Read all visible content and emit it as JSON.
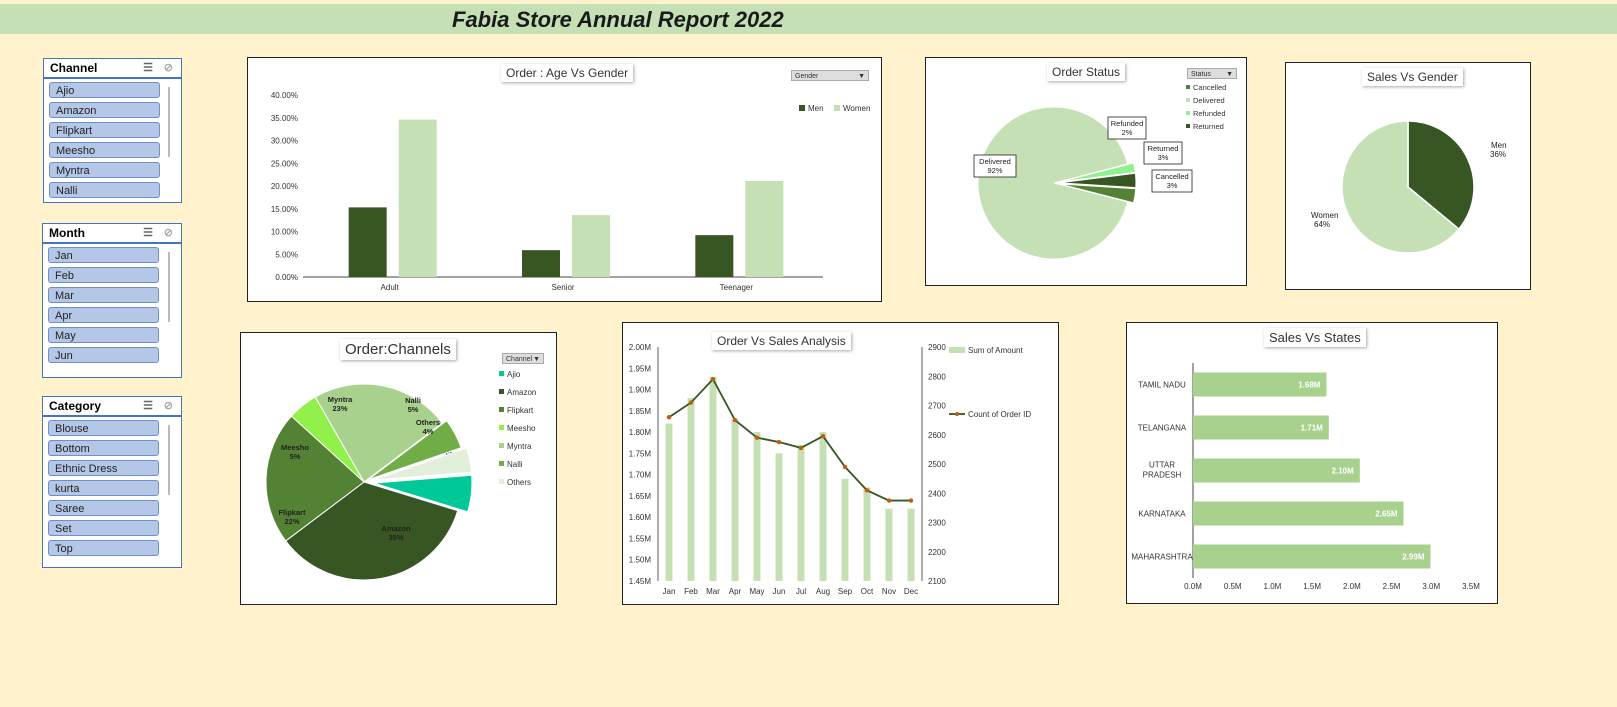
{
  "report_title": "Fabia Store Annual Report 2022",
  "colors": {
    "dark_green": "#375623",
    "mid_green": "#548235",
    "light_green": "#c5e0b4",
    "bright_green": "#92d050",
    "teal": "#00c896",
    "background": "#fff2cc",
    "slicer_item": "#b4c7e7"
  },
  "slicers": {
    "channel": {
      "label": "Channel",
      "items": [
        "Ajio",
        "Amazon",
        "Flipkart",
        "Meesho",
        "Myntra",
        "Nalli"
      ]
    },
    "month": {
      "label": "Month",
      "items": [
        "Jan",
        "Feb",
        "Mar",
        "Apr",
        "May",
        "Jun"
      ]
    },
    "category": {
      "label": "Category",
      "items": [
        "Blouse",
        "Bottom",
        "Ethnic Dress",
        "kurta",
        "Saree",
        "Set",
        "Top"
      ]
    }
  },
  "icons": {
    "multi_select": "multi-select-icon",
    "clear_filter": "clear-filter-icon"
  },
  "chart_data": [
    {
      "id": "age_gender",
      "type": "bar",
      "title": "Order : Age Vs Gender",
      "filter": "Gender",
      "categories": [
        "Adult",
        "Senior",
        "Teenager"
      ],
      "series": [
        {
          "name": "Men",
          "values": [
            15.3,
            5.9,
            9.2
          ],
          "color": "#375623"
        },
        {
          "name": "Women",
          "values": [
            34.6,
            13.6,
            21.1
          ],
          "color": "#c5e0b4"
        }
      ],
      "yticks": [
        "0.00%",
        "5.00%",
        "10.00%",
        "15.00%",
        "20.00%",
        "25.00%",
        "30.00%",
        "35.00%",
        "40.00%"
      ],
      "ylim": [
        0,
        40
      ],
      "legend": "top-right"
    },
    {
      "id": "order_status",
      "type": "pie",
      "title": "Order Status",
      "filter": "Status",
      "slices": [
        {
          "name": "Cancelled",
          "value": 3,
          "label": "Cancelled",
          "pct": "3%",
          "color": "#548235"
        },
        {
          "name": "Delivered",
          "value": 92,
          "label": "Delivered",
          "pct": "92%",
          "color": "#c5e0b4"
        },
        {
          "name": "Refunded",
          "value": 2,
          "label": "Refunded",
          "pct": "2%",
          "color": "#92f092"
        },
        {
          "name": "Returned",
          "value": 3,
          "label": "Returned",
          "pct": "3%",
          "color": "#375623"
        }
      ],
      "legend": "top-right"
    },
    {
      "id": "sales_gender",
      "type": "pie",
      "title": "Sales Vs Gender",
      "slices": [
        {
          "name": "Men",
          "value": 36,
          "label": "Men",
          "pct": "36%",
          "color": "#375623"
        },
        {
          "name": "Women",
          "value": 64,
          "label": "Women",
          "pct": "64%",
          "color": "#c5e0b4"
        }
      ]
    },
    {
      "id": "order_channels",
      "type": "pie",
      "title": "Order:Channels",
      "filter": "Channel",
      "slices": [
        {
          "name": "Ajio",
          "value": 6,
          "label": "Ajio",
          "pct": "6%",
          "color": "#00c896"
        },
        {
          "name": "Amazon",
          "value": 35,
          "label": "Amazon",
          "pct": "35%",
          "color": "#375623"
        },
        {
          "name": "Flipkart",
          "value": 22,
          "label": "Flipkart",
          "pct": "22%",
          "color": "#548235"
        },
        {
          "name": "Meesho",
          "value": 5,
          "label": "Meesho",
          "pct": "5%",
          "color": "#92f04a"
        },
        {
          "name": "Myntra",
          "value": 23,
          "label": "Myntra",
          "pct": "23%",
          "color": "#a9d18e"
        },
        {
          "name": "Nalli",
          "value": 5,
          "label": "Nalli",
          "pct": "5%",
          "color": "#70ad47"
        },
        {
          "name": "Others",
          "value": 4,
          "label": "Others",
          "pct": "4%",
          "color": "#e2efda"
        }
      ],
      "legend": "right"
    },
    {
      "id": "order_sales",
      "type": "bar+line",
      "title": "Order Vs Sales Analysis",
      "categories": [
        "Jan",
        "Feb",
        "Mar",
        "Apr",
        "May",
        "Jun",
        "Jul",
        "Aug",
        "Sep",
        "Oct",
        "Nov",
        "Dec"
      ],
      "series": [
        {
          "name": "Sum of Amount",
          "type": "bar",
          "axis": "left",
          "values": [
            1.82,
            1.88,
            1.93,
            1.83,
            1.8,
            1.75,
            1.77,
            1.8,
            1.69,
            1.67,
            1.62,
            1.62
          ],
          "color": "#c5e0b4"
        },
        {
          "name": "Count of Order ID",
          "type": "line",
          "axis": "right",
          "values": [
            2660,
            2710,
            2790,
            2650,
            2590,
            2575,
            2555,
            2595,
            2490,
            2410,
            2375,
            2375
          ],
          "color": "#375623",
          "marker_color": "#c55a11"
        }
      ],
      "yticks_left": [
        "1.45M",
        "1.50M",
        "1.55M",
        "1.60M",
        "1.65M",
        "1.70M",
        "1.75M",
        "1.80M",
        "1.85M",
        "1.90M",
        "1.95M",
        "2.00M"
      ],
      "ylim_left": [
        1.45,
        2.0
      ],
      "yticks_right": [
        "2100",
        "2200",
        "2300",
        "2400",
        "2500",
        "2600",
        "2700",
        "2800",
        "2900"
      ],
      "ylim_right": [
        2100,
        2900
      ]
    },
    {
      "id": "sales_states",
      "type": "bar",
      "orientation": "horizontal",
      "title": "Sales Vs States",
      "categories": [
        "TAMIL NADU",
        "TELANGANA",
        "UTTAR PRADESH",
        "KARNATAKA",
        "MAHARASHTRA"
      ],
      "values": [
        1.68,
        1.71,
        2.1,
        2.65,
        2.99
      ],
      "value_labels": [
        "1.68M",
        "1.71M",
        "2.10M",
        "2.65M",
        "2.99M"
      ],
      "xticks": [
        "0.0M",
        "0.5M",
        "1.0M",
        "1.5M",
        "2.0M",
        "2.5M",
        "3.0M",
        "3.5M"
      ],
      "xlim": [
        0,
        3.5
      ]
    }
  ]
}
